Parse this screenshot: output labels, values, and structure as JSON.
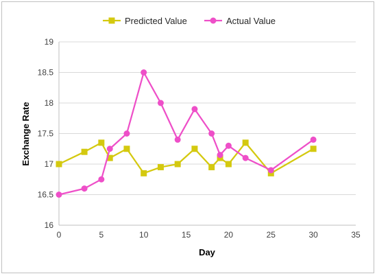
{
  "chart_data": {
    "type": "line",
    "xlabel": "Day",
    "ylabel": "Exchange Rate",
    "xlim": [
      0,
      35
    ],
    "ylim": [
      16,
      19
    ],
    "xticks": [
      0,
      5,
      10,
      15,
      20,
      25,
      30,
      35
    ],
    "yticks": [
      16,
      16.5,
      17,
      17.5,
      18,
      18.5,
      19
    ],
    "grid": "horizontal",
    "legend_position": "top",
    "series": [
      {
        "name": "Predicted Value",
        "color": "#d4c90f",
        "marker": "square",
        "points": [
          [
            0,
            17.0
          ],
          [
            3,
            17.2
          ],
          [
            5,
            17.35
          ],
          [
            6,
            17.1
          ],
          [
            8,
            17.25
          ],
          [
            10,
            16.85
          ],
          [
            12,
            16.95
          ],
          [
            14,
            17.0
          ],
          [
            16,
            17.25
          ],
          [
            18,
            16.95
          ],
          [
            19,
            17.1
          ],
          [
            20,
            17.0
          ],
          [
            22,
            17.35
          ],
          [
            25,
            16.85
          ],
          [
            30,
            17.25
          ]
        ]
      },
      {
        "name": "Actual Value",
        "color": "#ee4fc8",
        "marker": "circle",
        "points": [
          [
            0,
            16.5
          ],
          [
            3,
            16.6
          ],
          [
            5,
            16.75
          ],
          [
            6,
            17.25
          ],
          [
            8,
            17.5
          ],
          [
            10,
            18.5
          ],
          [
            12,
            18.0
          ],
          [
            14,
            17.4
          ],
          [
            16,
            17.9
          ],
          [
            18,
            17.5
          ],
          [
            19,
            17.15
          ],
          [
            20,
            17.3
          ],
          [
            22,
            17.1
          ],
          [
            25,
            16.9
          ],
          [
            30,
            17.4
          ]
        ]
      }
    ]
  }
}
